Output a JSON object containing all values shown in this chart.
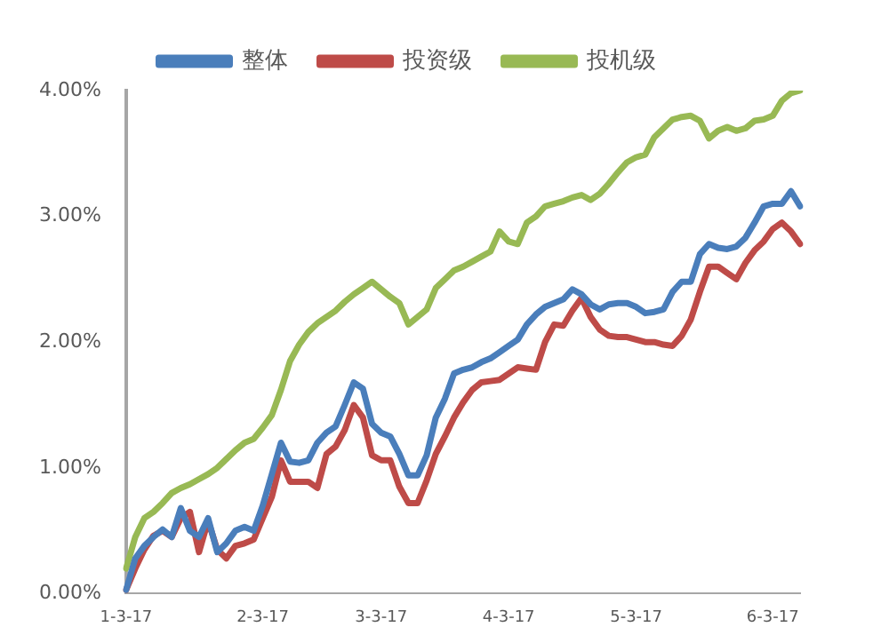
{
  "chart_data": {
    "type": "line",
    "legend": "top",
    "grid": false,
    "marker": "none",
    "line_style": "solid",
    "categories": [
      "1-3-17",
      null,
      null,
      null,
      null,
      null,
      null,
      null,
      null,
      null,
      null,
      null,
      null,
      null,
      null,
      "2-3-17",
      null,
      null,
      null,
      null,
      null,
      null,
      null,
      null,
      null,
      null,
      null,
      null,
      "3-3-17",
      null,
      null,
      null,
      null,
      null,
      null,
      null,
      null,
      null,
      null,
      null,
      null,
      null,
      "4-3-17",
      null,
      null,
      null,
      null,
      null,
      null,
      null,
      null,
      null,
      null,
      null,
      null,
      null,
      "5-3-17",
      null,
      null,
      null,
      null,
      null,
      null,
      null,
      null,
      null,
      null,
      null,
      null,
      null,
      null,
      "6-3-17",
      null,
      null,
      null
    ],
    "ylim": [
      0,
      4
    ],
    "yticks": [
      {
        "value": 0,
        "label": "0.00%"
      },
      {
        "value": 1,
        "label": "1.00%"
      },
      {
        "value": 2,
        "label": "2.00%"
      },
      {
        "value": 3,
        "label": "3.00%"
      },
      {
        "value": 4,
        "label": "4.00%"
      }
    ],
    "series": [
      {
        "name": "整体",
        "color": "#4a7ebb",
        "values": [
          0.03,
          0.28,
          0.38,
          0.45,
          0.51,
          0.45,
          0.68,
          0.5,
          0.45,
          0.6,
          0.33,
          0.4,
          0.5,
          0.53,
          0.5,
          0.7,
          0.95,
          1.2,
          1.05,
          1.04,
          1.06,
          1.2,
          1.28,
          1.33,
          1.5,
          1.68,
          1.63,
          1.35,
          1.28,
          1.25,
          1.11,
          0.94,
          0.94,
          1.1,
          1.4,
          1.55,
          1.75,
          1.78,
          1.8,
          1.84,
          1.87,
          1.92,
          1.97,
          2.02,
          2.14,
          2.22,
          2.28,
          2.31,
          2.34,
          2.42,
          2.38,
          2.3,
          2.26,
          2.3,
          2.31,
          2.31,
          2.28,
          2.23,
          2.24,
          2.26,
          2.4,
          2.48,
          2.48,
          2.7,
          2.78,
          2.75,
          2.74,
          2.76,
          2.83,
          2.95,
          3.08,
          3.1,
          3.1,
          3.2,
          3.08
        ]
      },
      {
        "name": "投资级",
        "color": "#be4b48",
        "values": [
          0.03,
          0.2,
          0.35,
          0.46,
          0.5,
          0.45,
          0.6,
          0.65,
          0.33,
          0.58,
          0.35,
          0.28,
          0.38,
          0.4,
          0.43,
          0.6,
          0.77,
          1.06,
          0.89,
          0.89,
          0.89,
          0.84,
          1.11,
          1.17,
          1.3,
          1.5,
          1.4,
          1.1,
          1.06,
          1.06,
          0.85,
          0.72,
          0.72,
          0.9,
          1.11,
          1.25,
          1.4,
          1.52,
          1.62,
          1.68,
          1.69,
          1.7,
          1.75,
          1.8,
          1.79,
          1.78,
          2.0,
          2.14,
          2.13,
          2.25,
          2.35,
          2.2,
          2.1,
          2.05,
          2.04,
          2.04,
          2.02,
          2.0,
          2.0,
          1.98,
          1.97,
          2.05,
          2.18,
          2.4,
          2.6,
          2.6,
          2.55,
          2.5,
          2.63,
          2.73,
          2.8,
          2.9,
          2.95,
          2.88,
          2.78
        ]
      },
      {
        "name": "投机级",
        "color": "#98b954",
        "values": [
          0.2,
          0.45,
          0.6,
          0.65,
          0.72,
          0.8,
          0.84,
          0.87,
          0.91,
          0.95,
          1.0,
          1.07,
          1.14,
          1.2,
          1.23,
          1.32,
          1.42,
          1.62,
          1.85,
          1.98,
          2.08,
          2.15,
          2.2,
          2.25,
          2.32,
          2.38,
          2.43,
          2.48,
          2.42,
          2.36,
          2.31,
          2.14,
          2.2,
          2.26,
          2.43,
          2.5,
          2.57,
          2.6,
          2.64,
          2.68,
          2.72,
          2.88,
          2.8,
          2.78,
          2.95,
          3.0,
          3.08,
          3.1,
          3.12,
          3.15,
          3.17,
          3.13,
          3.18,
          3.26,
          3.35,
          3.43,
          3.47,
          3.49,
          3.63,
          3.7,
          3.77,
          3.79,
          3.8,
          3.76,
          3.62,
          3.68,
          3.71,
          3.68,
          3.7,
          3.76,
          3.77,
          3.8,
          3.92,
          3.98,
          4.0
        ]
      }
    ]
  }
}
